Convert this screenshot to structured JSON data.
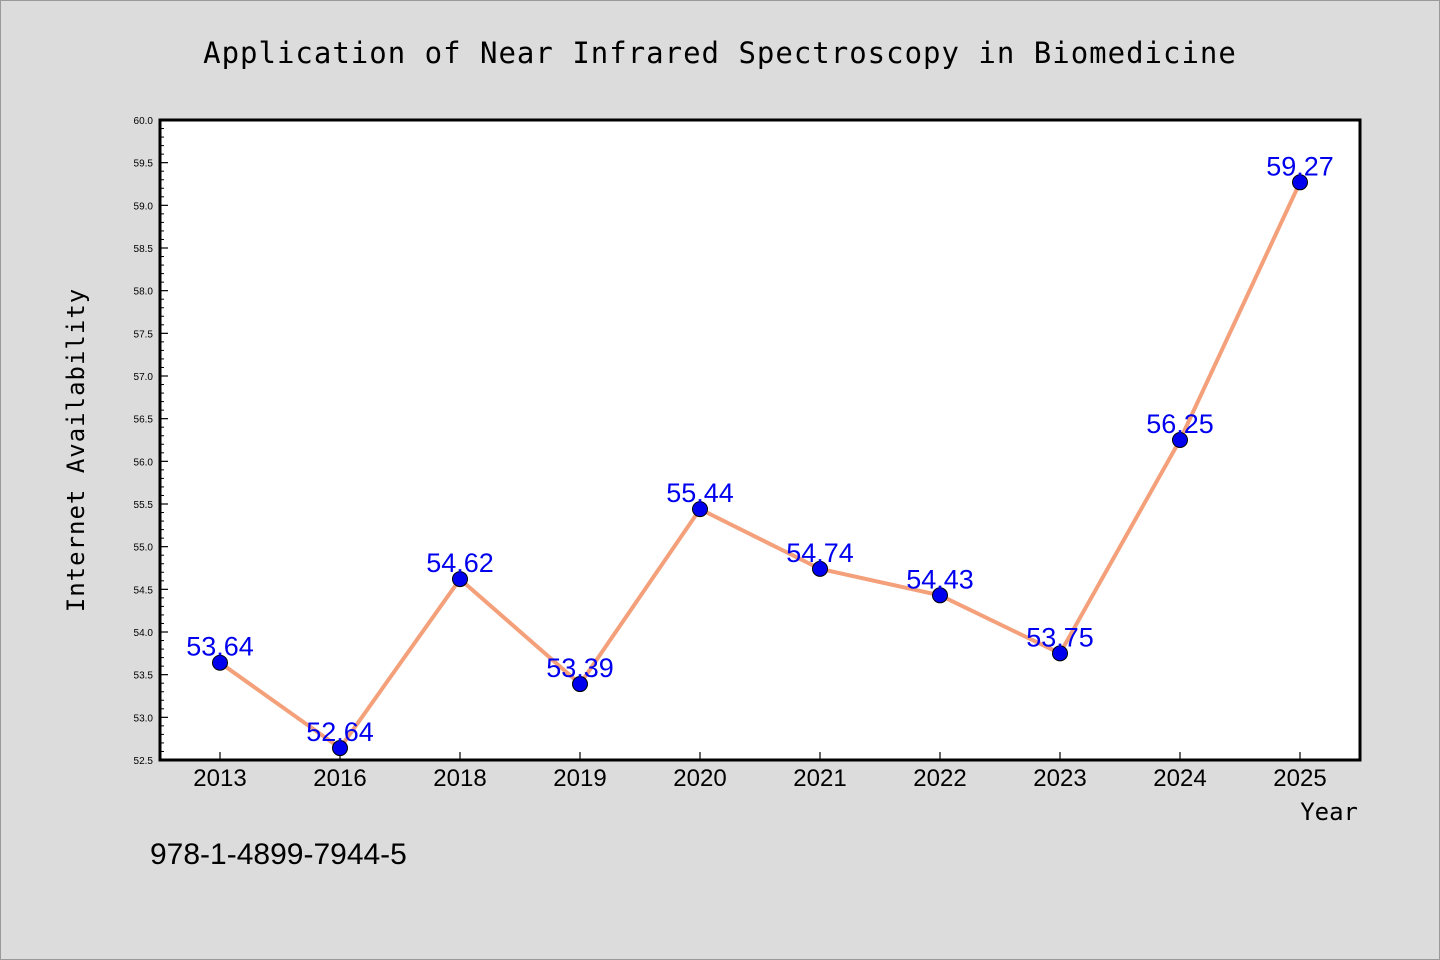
{
  "footer_text": "978-1-4899-7944-5",
  "colors": {
    "background": "#dcdcdc",
    "plot_background": "#ffffff",
    "line": "#f4a07a",
    "marker": "#0000ee",
    "label": "#0000ee",
    "text": "#000000"
  },
  "chart_data": {
    "type": "line",
    "title": "Application of Near Infrared Spectroscopy in Biomedicine",
    "xlabel": "Year",
    "ylabel": "Internet Availability",
    "categories": [
      "2013",
      "2016",
      "2018",
      "2019",
      "2020",
      "2021",
      "2022",
      "2023",
      "2024",
      "2025"
    ],
    "values": [
      53.64,
      52.64,
      54.62,
      53.39,
      55.44,
      54.74,
      54.43,
      53.75,
      56.25,
      59.27
    ],
    "data_labels": [
      "53.64",
      "52.64",
      "54.62",
      "53.39",
      "55.44",
      "54.74",
      "54.43",
      "53.75",
      "56.25",
      "59.27"
    ],
    "ylim": [
      52.5,
      60.0
    ],
    "y_ticks": [
      "52.5",
      "53.0",
      "53.5",
      "54.0",
      "54.5",
      "55.0",
      "55.5",
      "56.0",
      "56.5",
      "57.0",
      "57.5",
      "58.0",
      "58.5",
      "59.0",
      "59.5",
      "60.0"
    ],
    "grid": false,
    "legend": "none"
  }
}
